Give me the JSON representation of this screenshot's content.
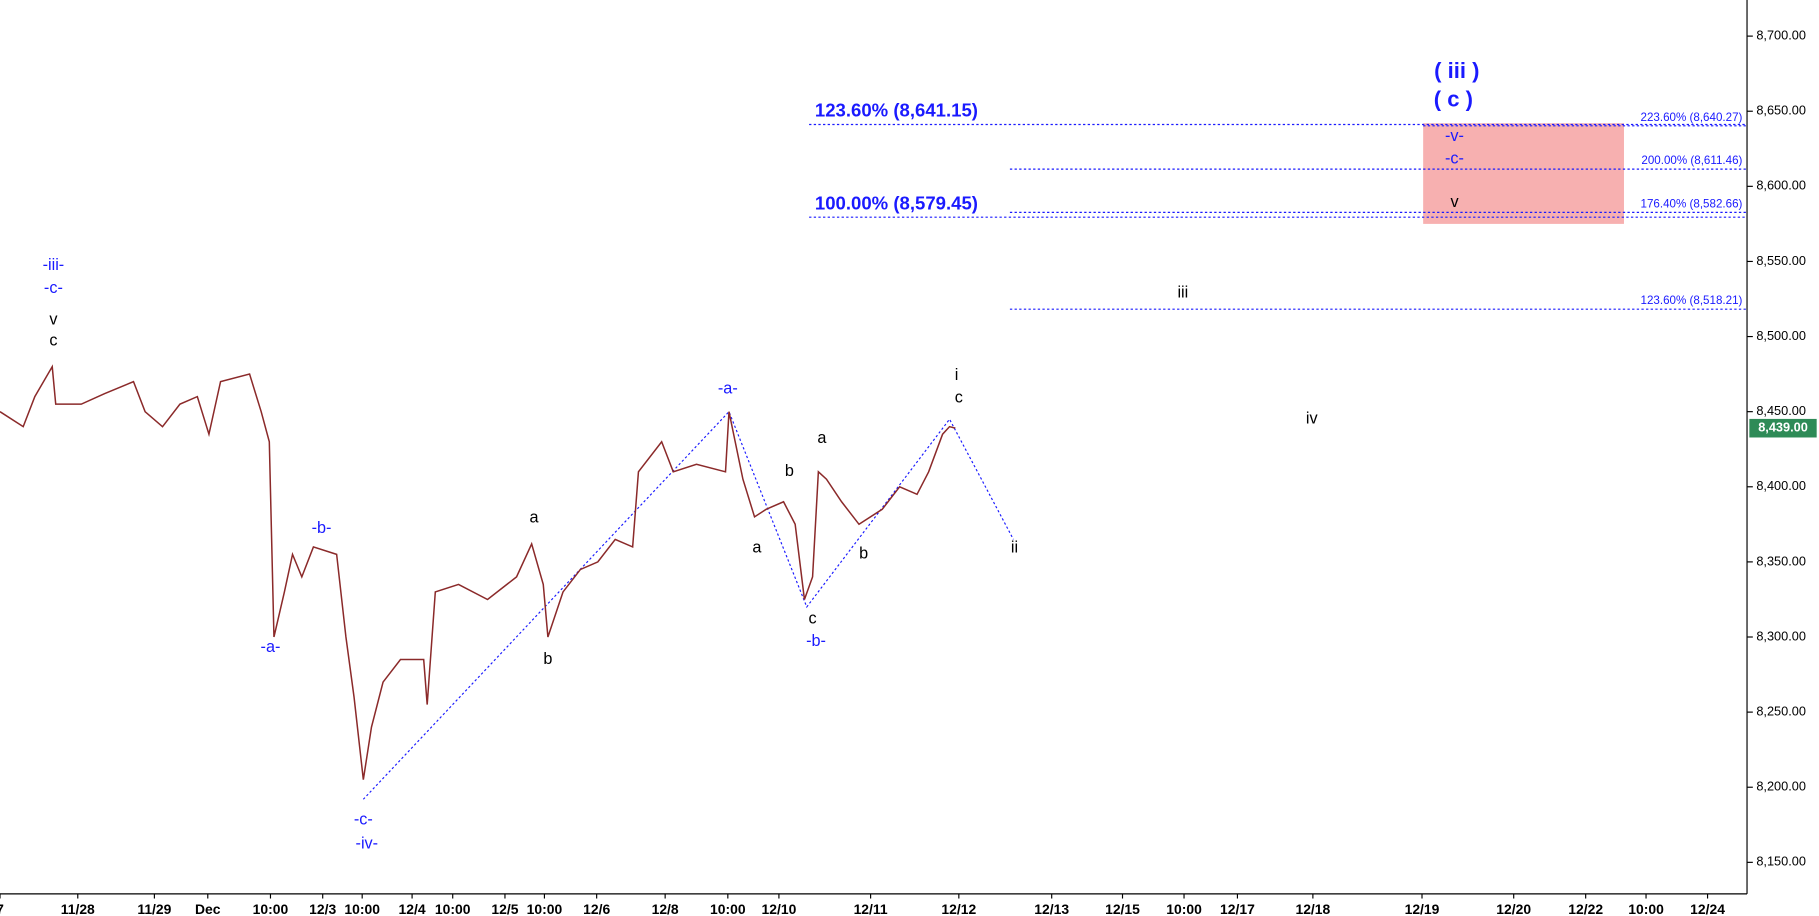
{
  "chart_data": {
    "type": "line",
    "xlim": [
      0,
      1505
    ],
    "ylim": [
      8129,
      8724
    ],
    "yticks": [
      {
        "value": 8150,
        "label": "8,150.00"
      },
      {
        "value": 8200,
        "label": "8,200.00"
      },
      {
        "value": 8250,
        "label": "8,250.00"
      },
      {
        "value": 8300,
        "label": "8,300.00"
      },
      {
        "value": 8350,
        "label": "8,350.00"
      },
      {
        "value": 8400,
        "label": "8,400.00"
      },
      {
        "value": 8450,
        "label": "8,450.00"
      },
      {
        "value": 8500,
        "label": "8,500.00"
      },
      {
        "value": 8550,
        "label": "8,550.00"
      },
      {
        "value": 8600,
        "label": "8,600.00"
      },
      {
        "value": 8650,
        "label": "8,650.00"
      },
      {
        "value": 8700,
        "label": "8,700.00"
      }
    ],
    "xticks": [
      {
        "value": 0,
        "label": "7"
      },
      {
        "value": 67,
        "label": "11/28"
      },
      {
        "value": 133,
        "label": "11/29"
      },
      {
        "value": 179,
        "label": "Dec"
      },
      {
        "value": 233,
        "label": "10:00"
      },
      {
        "value": 278,
        "label": "12/3"
      },
      {
        "value": 312,
        "label": "10:00"
      },
      {
        "value": 355,
        "label": "12/4"
      },
      {
        "value": 390,
        "label": "10:00"
      },
      {
        "value": 435,
        "label": "12/5"
      },
      {
        "value": 469,
        "label": "10:00"
      },
      {
        "value": 514,
        "label": "12/6"
      },
      {
        "value": 573,
        "label": "12/8"
      },
      {
        "value": 627,
        "label": "10:00"
      },
      {
        "value": 671,
        "label": "12/10"
      },
      {
        "value": 750,
        "label": "12/11"
      },
      {
        "value": 826,
        "label": "12/12"
      },
      {
        "value": 906,
        "label": "12/13"
      },
      {
        "value": 967,
        "label": "12/15"
      },
      {
        "value": 1020,
        "label": "10:00"
      },
      {
        "value": 1066,
        "label": "12/17"
      },
      {
        "value": 1131,
        "label": "12/18"
      },
      {
        "value": 1225,
        "label": "12/19"
      },
      {
        "value": 1304,
        "label": "12/20"
      },
      {
        "value": 1366,
        "label": "12/22"
      },
      {
        "value": 1418,
        "label": "10:00"
      },
      {
        "value": 1471,
        "label": "12/24"
      }
    ],
    "series": [
      {
        "name": "price",
        "color": "#8b2a2a",
        "x": [
          0,
          20,
          30,
          45,
          48,
          70,
          90,
          115,
          125,
          140,
          155,
          170,
          180,
          190,
          215,
          225,
          232,
          236,
          245,
          252,
          260,
          270,
          290,
          298,
          305,
          313,
          320,
          330,
          345,
          365,
          368,
          375,
          395,
          420,
          445,
          458,
          468,
          472,
          485,
          500,
          515,
          530,
          545,
          550,
          570,
          580,
          600,
          625,
          628,
          640,
          650,
          660,
          675,
          685,
          693,
          700,
          705,
          712,
          725,
          740,
          760,
          775,
          790,
          800,
          812,
          818,
          823
        ],
        "values": [
          8450,
          8440,
          8460,
          8480,
          8455,
          8455,
          8462,
          8470,
          8450,
          8440,
          8455,
          8460,
          8435,
          8470,
          8475,
          8450,
          8430,
          8300,
          8330,
          8355,
          8340,
          8360,
          8355,
          8300,
          8260,
          8205,
          8240,
          8270,
          8285,
          8285,
          8255,
          8330,
          8335,
          8325,
          8340,
          8362,
          8335,
          8300,
          8330,
          8345,
          8350,
          8365,
          8360,
          8410,
          8430,
          8410,
          8415,
          8410,
          8450,
          8405,
          8380,
          8385,
          8390,
          8375,
          8325,
          8340,
          8410,
          8405,
          8390,
          8375,
          8385,
          8400,
          8395,
          8410,
          8435,
          8440,
          8439
        ]
      }
    ],
    "last": {
      "value": 8439,
      "label": "8,439.00",
      "color": "#2e8b57"
    },
    "wave_lines": {
      "color": "#1a1aff",
      "x": [
        313,
        628,
        695,
        818,
        873
      ],
      "values": [
        8192,
        8450,
        8320,
        8445,
        8365
      ]
    },
    "zone": {
      "x": [
        1226,
        1399
      ],
      "y": [
        8575,
        8642
      ],
      "color": "#f7b0b0"
    },
    "fib_levels": [
      {
        "value": 8641.15,
        "label": "123.60% (8,641.15)",
        "x_start": 697,
        "side": "left"
      },
      {
        "value": 8640.27,
        "label": "223.60% (8,640.27)",
        "x_start": 1226,
        "side": "right"
      },
      {
        "value": 8611.46,
        "label": "200.00% (8,611.46)",
        "x_start": 870,
        "side": "right"
      },
      {
        "value": 8582.66,
        "label": "176.40% (8,582.66)",
        "x_start": 870,
        "side": "right"
      },
      {
        "value": 8579.45,
        "label": "100.00% (8,579.45)",
        "x_start": 697,
        "side": "left"
      },
      {
        "value": 8518.21,
        "label": "123.60% (8,518.21)",
        "x_start": 870,
        "side": "right"
      }
    ],
    "annotations": [
      {
        "text": "-iii-",
        "x": 46,
        "y": 8547,
        "color": "blue"
      },
      {
        "text": "-c-",
        "x": 46,
        "y": 8532,
        "color": "blue"
      },
      {
        "text": "v",
        "x": 46,
        "y": 8511,
        "color": "black"
      },
      {
        "text": "c",
        "x": 46,
        "y": 8497,
        "color": "black"
      },
      {
        "text": "-a-",
        "x": 233,
        "y": 8293,
        "color": "blue"
      },
      {
        "text": "-b-",
        "x": 277,
        "y": 8372,
        "color": "blue"
      },
      {
        "text": "-c-",
        "x": 313,
        "y": 8178,
        "color": "blue"
      },
      {
        "text": "-iv-",
        "x": 316,
        "y": 8162,
        "color": "blue"
      },
      {
        "text": "a",
        "x": 460,
        "y": 8379,
        "color": "black"
      },
      {
        "text": "b",
        "x": 472,
        "y": 8285,
        "color": "black"
      },
      {
        "text": "-a-",
        "x": 627,
        "y": 8465,
        "color": "blue"
      },
      {
        "text": "b",
        "x": 680,
        "y": 8410,
        "color": "black"
      },
      {
        "text": "a",
        "x": 652,
        "y": 8359,
        "color": "black"
      },
      {
        "text": "a",
        "x": 708,
        "y": 8432,
        "color": "black"
      },
      {
        "text": "c",
        "x": 700,
        "y": 8312,
        "color": "black"
      },
      {
        "text": "-b-",
        "x": 703,
        "y": 8297,
        "color": "blue"
      },
      {
        "text": "b",
        "x": 744,
        "y": 8355,
        "color": "black"
      },
      {
        "text": "i",
        "x": 824,
        "y": 8474,
        "color": "black"
      },
      {
        "text": "c",
        "x": 826,
        "y": 8459,
        "color": "black"
      },
      {
        "text": "ii",
        "x": 874,
        "y": 8359,
        "color": "black"
      },
      {
        "text": "iii",
        "x": 1019,
        "y": 8529,
        "color": "black"
      },
      {
        "text": "iv",
        "x": 1130,
        "y": 8445,
        "color": "black"
      },
      {
        "text": "v",
        "x": 1253,
        "y": 8589,
        "color": "black"
      },
      {
        "text": "-c-",
        "x": 1253,
        "y": 8618,
        "color": "blue"
      },
      {
        "text": "-v-",
        "x": 1253,
        "y": 8633,
        "color": "blue"
      },
      {
        "text": "( c )",
        "x": 1252,
        "y": 8657,
        "color": "blue",
        "large": true
      },
      {
        "text": "( iii )",
        "x": 1255,
        "y": 8676,
        "color": "blue",
        "large": true
      }
    ]
  }
}
